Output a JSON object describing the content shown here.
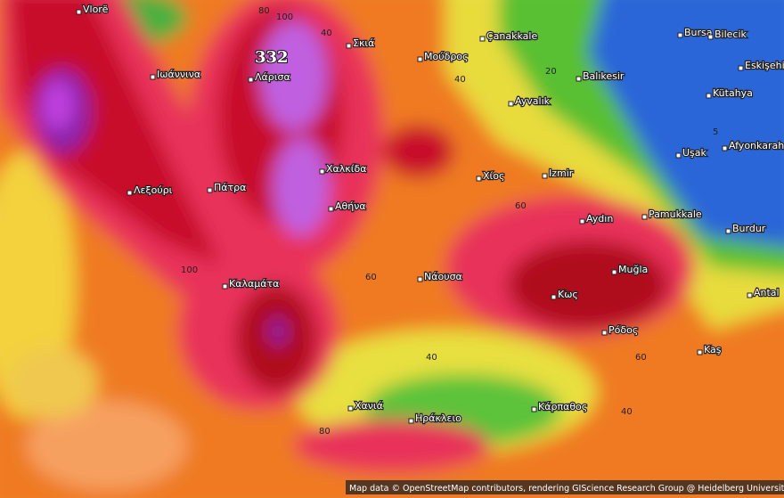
{
  "peak": "332",
  "places": [
    "Vlorë",
    "Ιωάννινα",
    "Λεξούρι",
    "Πάτρα",
    "Λάρισα",
    "Χαλκίδα",
    "Αθήνα",
    "Καλαμάτα",
    "Σκιά",
    "Μούδρος",
    "Çanakkale",
    "Bursa",
    "Bilecik",
    "Eskişehir",
    "Balıkesir",
    "Kütahya",
    "Ayvalık",
    "Afyonkarah",
    "Uşak",
    "Χίος",
    "Izmir",
    "Aydın",
    "Pamukkale",
    "Burdur",
    "Muğla",
    "Antal",
    "Νάουσα",
    "Κως",
    "Ρόδος",
    "Kaş",
    "Χανιά",
    "Ηράκλειο",
    "Κάρπαθος"
  ],
  "contour_labels": [
    80,
    100,
    40,
    40,
    20,
    5,
    60,
    100,
    60,
    40,
    60,
    40,
    80
  ],
  "attribution": "Map data © OpenStreetMap contributors, rendering GIScience Research Group @ Heidelberg University"
}
